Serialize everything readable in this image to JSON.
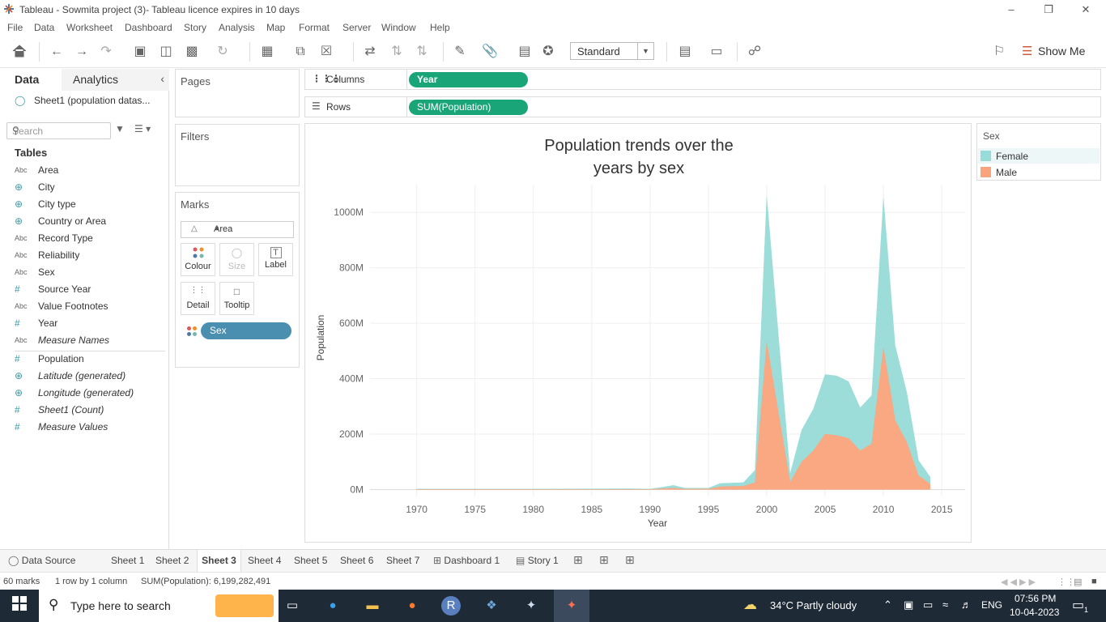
{
  "window": {
    "title": "Tableau - Sowmita project (3)- Tableau licence expires in 10 days"
  },
  "menu": [
    "File",
    "Data",
    "Worksheet",
    "Dashboard",
    "Story",
    "Analysis",
    "Map",
    "Format",
    "Server",
    "Window",
    "Help"
  ],
  "toolbar": {
    "fit_value": "Standard",
    "show_me": "Show Me"
  },
  "data_pane": {
    "tab_data": "Data",
    "tab_analytics": "Analytics",
    "datasource": "Sheet1 (population datas...",
    "search_placeholder": "Search",
    "tables_heading": "Tables",
    "dimensions": [
      {
        "type": "Abc",
        "name": "Area"
      },
      {
        "type": "geo",
        "name": "City"
      },
      {
        "type": "geo",
        "name": "City type"
      },
      {
        "type": "geo",
        "name": "Country or Area"
      },
      {
        "type": "Abc",
        "name": "Record Type"
      },
      {
        "type": "Abc",
        "name": "Reliability"
      },
      {
        "type": "Abc",
        "name": "Sex"
      },
      {
        "type": "#",
        "name": "Source Year"
      },
      {
        "type": "Abc",
        "name": "Value Footnotes"
      },
      {
        "type": "#",
        "name": "Year"
      },
      {
        "type": "Abc",
        "name": "Measure Names"
      }
    ],
    "measures": [
      {
        "type": "#",
        "name": "Population"
      },
      {
        "type": "geo",
        "name": "Latitude (generated)"
      },
      {
        "type": "geo",
        "name": "Longitude (generated)"
      },
      {
        "type": "#",
        "name": "Sheet1 (Count)"
      },
      {
        "type": "#",
        "name": "Measure Values"
      }
    ]
  },
  "cards": {
    "pages": "Pages",
    "filters": "Filters",
    "marks": "Marks",
    "mark_type": "Area",
    "mark_buttons": [
      "Colour",
      "Size",
      "Label",
      "Detail",
      "Tooltip"
    ],
    "color_pill": "Sex"
  },
  "shelves": {
    "columns_label": "Columns",
    "columns_pill": "Year",
    "rows_label": "Rows",
    "rows_pill": "SUM(Population)"
  },
  "legend": {
    "title": "Sex",
    "items": [
      {
        "name": "Female",
        "color": "#97dcd8"
      },
      {
        "name": "Male",
        "color": "#f9a47c"
      }
    ]
  },
  "chart_data": {
    "type": "area",
    "title_line1": "Population trends over the",
    "title_line2": "years by sex",
    "xlabel": "Year",
    "ylabel": "Population",
    "x_ticks": [
      "1970",
      "1975",
      "1980",
      "1985",
      "1990",
      "1995",
      "2000",
      "2005",
      "2010",
      "2015"
    ],
    "y_ticks": [
      "0M",
      "200M",
      "400M",
      "600M",
      "800M",
      "1000M"
    ],
    "xlim": [
      1966,
      2017
    ],
    "ylim": [
      -25,
      1100
    ],
    "stacked": true,
    "x": [
      1970,
      1980,
      1988,
      1990,
      1991,
      1992,
      1993,
      1995,
      1996,
      1998,
      1999,
      2000,
      2002,
      2003,
      2004,
      2005,
      2006,
      2007,
      2008,
      2009,
      2010,
      2011,
      2012,
      2013,
      2014
    ],
    "series": [
      {
        "name": "Male",
        "color": "#f9a47c",
        "values": [
          0,
          0,
          0,
          0,
          3,
          5,
          2,
          2,
          10,
          12,
          25,
          530,
          25,
          100,
          140,
          200,
          195,
          185,
          140,
          165,
          510,
          250,
          170,
          50,
          20
        ]
      },
      {
        "name": "Female",
        "color": "#97dcd8",
        "values": [
          2,
          2,
          3,
          2,
          5,
          10,
          3,
          3,
          12,
          13,
          45,
          525,
          30,
          115,
          150,
          215,
          215,
          205,
          155,
          175,
          540,
          270,
          180,
          55,
          25
        ]
      }
    ],
    "colors": {
      "Male": "#f9a47c",
      "Female": "#97dcd8"
    }
  },
  "sheet_tabs": [
    "Data Source",
    "Sheet 1",
    "Sheet 2",
    "Sheet 3",
    "Sheet 4",
    "Sheet 5",
    "Sheet 6",
    "Sheet 7",
    "Dashboard 1",
    "Story 1"
  ],
  "active_tab": "Sheet 3",
  "status": {
    "marks": "60 marks",
    "rows_cols": "1 row by 1 column",
    "sum": "SUM(Population): 6,199,282,491"
  },
  "taskbar": {
    "search_placeholder": "Type here to search",
    "weather": "34°C  Partly cloudy",
    "lang": "ENG",
    "time": "07:56 PM",
    "date": "10-04-2023",
    "notif_count": "1"
  }
}
